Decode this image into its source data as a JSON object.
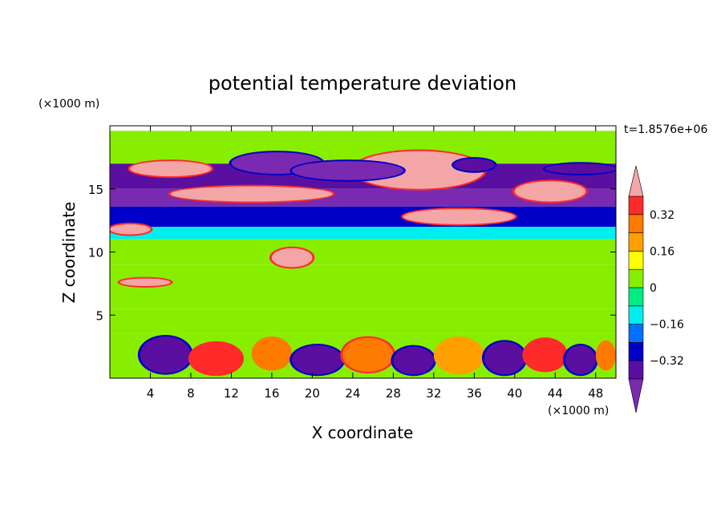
{
  "chart_data": {
    "type": "heatmap",
    "title": "potential temperature deviation",
    "xlabel": "X coordinate",
    "ylabel": "Z coordinate",
    "x_unit_label": "(×1000 m)",
    "y_unit_label": "(×1000 m)",
    "time_label": "t=1.8576e+06",
    "xlim": [
      0,
      50
    ],
    "ylim": [
      0,
      20
    ],
    "x_ticks": [
      4,
      8,
      12,
      16,
      20,
      24,
      28,
      32,
      36,
      40,
      44,
      48
    ],
    "x_tick_labels": [
      "4",
      "8",
      "12",
      "16",
      "20",
      "24",
      "28",
      "32",
      "36",
      "40",
      "44",
      "48"
    ],
    "y_ticks": [
      5,
      10,
      15
    ],
    "y_tick_labels": [
      "5",
      "10",
      "15"
    ],
    "colorbar": {
      "levels": [
        -0.4,
        -0.32,
        -0.24,
        -0.16,
        -0.08,
        0,
        0.08,
        0.16,
        0.24,
        0.32,
        0.4
      ],
      "tick_values": [
        0.32,
        0.16,
        0,
        -0.16,
        -0.32
      ],
      "tick_labels": [
        "0.32",
        "0.16",
        "0",
        "−0.16",
        "−0.32"
      ],
      "colors": [
        "#e55ca0",
        "#ff2a2a",
        "#ff7a00",
        "#ffa000",
        "#ffff00",
        "#88ee00",
        "#00ee80",
        "#00eeee",
        "#0070ff",
        "#0000c8",
        "#5a0fa0",
        "#7a2ab0"
      ],
      "over_color": "#f4a6a6",
      "under_color": "#7a2ab0"
    },
    "bands": [
      {
        "z": [
          17.0,
          19.6
        ],
        "value": 0.02
      },
      {
        "z": [
          15.0,
          17.0
        ],
        "value": -0.4
      },
      {
        "z": [
          13.6,
          15.0
        ],
        "value": -0.45
      },
      {
        "z": [
          12.0,
          13.6
        ],
        "value": -0.26
      },
      {
        "z": [
          11.0,
          12.0
        ],
        "value": -0.12
      },
      {
        "z": [
          9.0,
          11.0
        ],
        "value": 0.02
      },
      {
        "z": [
          5.5,
          9.0
        ],
        "value": 0.04
      },
      {
        "z": [
          3.5,
          5.5
        ],
        "value": 0.06
      },
      {
        "z": [
          0.0,
          3.5
        ],
        "value": 0.0
      }
    ],
    "features": [
      {
        "x": [
          2,
          10
        ],
        "z": [
          16.0,
          17.2
        ],
        "value": 0.45
      },
      {
        "x": [
          6,
          22
        ],
        "z": [
          14.0,
          15.2
        ],
        "value": 0.45
      },
      {
        "x": [
          24,
          37
        ],
        "z": [
          15.0,
          18.0
        ],
        "value": 0.45
      },
      {
        "x": [
          40,
          47
        ],
        "z": [
          14.0,
          15.6
        ],
        "value": 0.45
      },
      {
        "x": [
          29,
          40
        ],
        "z": [
          12.2,
          13.4
        ],
        "value": 0.45
      },
      {
        "x": [
          0,
          4
        ],
        "z": [
          11.4,
          12.2
        ],
        "value": 0.45
      },
      {
        "x": [
          16,
          20
        ],
        "z": [
          8.8,
          10.3
        ],
        "value": 0.45
      },
      {
        "x": [
          1,
          6
        ],
        "z": [
          7.3,
          7.9
        ],
        "value": 0.45
      },
      {
        "x": [
          12,
          21
        ],
        "z": [
          16.2,
          17.9
        ],
        "value": -0.45
      },
      {
        "x": [
          18,
          29
        ],
        "z": [
          15.7,
          17.2
        ],
        "value": -0.45
      },
      {
        "x": [
          34,
          38
        ],
        "z": [
          16.4,
          17.4
        ],
        "value": -0.4
      },
      {
        "x": [
          43,
          50
        ],
        "z": [
          16.2,
          17.0
        ],
        "value": -0.4
      },
      {
        "x": [
          3,
          8
        ],
        "z": [
          0.4,
          3.3
        ],
        "value": -0.36
      },
      {
        "x": [
          8,
          13
        ],
        "z": [
          0.3,
          2.8
        ],
        "value": 0.36
      },
      {
        "x": [
          14,
          18
        ],
        "z": [
          0.6,
          3.3
        ],
        "value": 0.28
      },
      {
        "x": [
          18,
          23
        ],
        "z": [
          0.3,
          2.6
        ],
        "value": -0.36
      },
      {
        "x": [
          23,
          28
        ],
        "z": [
          0.5,
          3.2
        ],
        "value": 0.3
      },
      {
        "x": [
          28,
          32
        ],
        "z": [
          0.3,
          2.5
        ],
        "value": -0.38
      },
      {
        "x": [
          32,
          37
        ],
        "z": [
          0.3,
          3.3
        ],
        "value": 0.22
      },
      {
        "x": [
          37,
          41
        ],
        "z": [
          0.3,
          2.9
        ],
        "value": -0.38
      },
      {
        "x": [
          41,
          45
        ],
        "z": [
          0.6,
          3.1
        ],
        "value": 0.32
      },
      {
        "x": [
          45,
          48
        ],
        "z": [
          0.3,
          2.6
        ],
        "value": -0.36
      },
      {
        "x": [
          48,
          50
        ],
        "z": [
          0.6,
          3.0
        ],
        "value": 0.28
      }
    ]
  }
}
